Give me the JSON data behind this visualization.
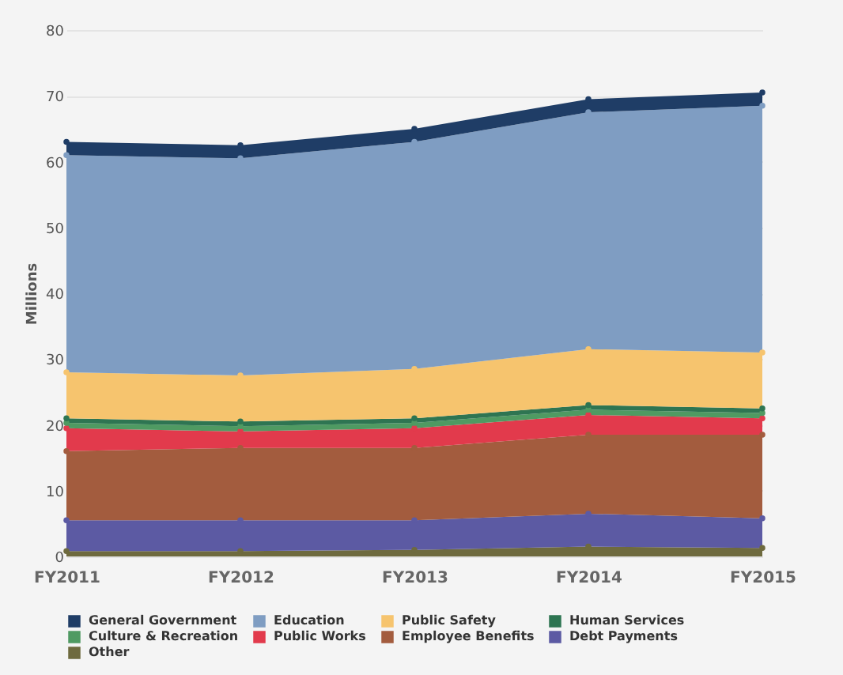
{
  "chart_data": {
    "type": "area",
    "stacked": true,
    "ylabel": "Millions",
    "categories": [
      "FY2011",
      "FY2012",
      "FY2013",
      "FY2014",
      "FY2015"
    ],
    "series": [
      {
        "name": "Other",
        "color": "#6e6a3e",
        "values": [
          0.8,
          0.8,
          1,
          1.5,
          1.3
        ]
      },
      {
        "name": "Debt Payments",
        "color": "#5c5aa3",
        "values": [
          4.7,
          4.7,
          4.5,
          5,
          4.5
        ]
      },
      {
        "name": "Employee Benefits",
        "color": "#a35c3e",
        "values": [
          10.5,
          11,
          11,
          12,
          12.7
        ]
      },
      {
        "name": "Public Works",
        "color": "#e23a4c",
        "values": [
          3.5,
          2.5,
          3,
          3,
          2.5
        ]
      },
      {
        "name": "Culture & Recreation",
        "color": "#4f9a62",
        "values": [
          0.8,
          0.8,
          0.8,
          0.8,
          0.8
        ]
      },
      {
        "name": "Human Services",
        "color": "#2e7552",
        "values": [
          0.7,
          0.7,
          0.7,
          0.7,
          0.7
        ]
      },
      {
        "name": "Public Safety",
        "color": "#f6c46e",
        "values": [
          7,
          7,
          7.5,
          8.5,
          8.5
        ]
      },
      {
        "name": "Education",
        "color": "#7f9dc2",
        "values": [
          33,
          33,
          34.5,
          36,
          37.5
        ]
      },
      {
        "name": "General Government",
        "color": "#1f3d66",
        "values": [
          2,
          2,
          2,
          2,
          2
        ]
      }
    ],
    "ylim": [
      0,
      80
    ],
    "yticks": [
      0,
      10,
      20,
      30,
      40,
      50,
      60,
      70,
      80
    ],
    "grid": "y",
    "legend": "bottom",
    "marker": "circle"
  }
}
